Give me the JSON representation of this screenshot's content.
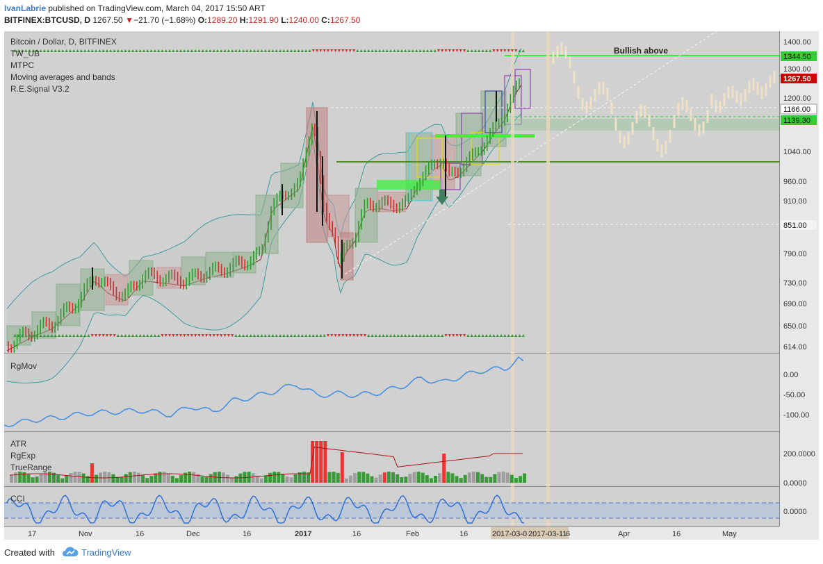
{
  "header": {
    "user": "IvanLabrie",
    "published_text": " published on TradingView.com, March 04, 2017 15:50 ART",
    "symbol": "BITFINEX:BTCUSD, D",
    "last": "1267.50",
    "change_arrow": "▼",
    "change": "−21.70 (−1.68%)",
    "o_label": "O:",
    "o_value": "1289.20",
    "h_label": "H:",
    "h_value": "1291.90",
    "l_label": "L:",
    "l_value": "1240.00",
    "c_label": "C:",
    "c_value": "1267.50"
  },
  "main_pane": {
    "title": "Bitcoin / Dollar, D, BITFINEX",
    "indicators": [
      "TW_UB",
      "MTPC",
      "Moving averages and bands",
      "R.E.Signal V3.2"
    ],
    "annotation": "Bullish above",
    "price_ticks": [
      "1400.00",
      "1300.00",
      "1200.00",
      "1040.00",
      "960.00",
      "910.00",
      "851.00",
      "790.00",
      "730.00",
      "690.00",
      "650.00",
      "614.00"
    ],
    "price_tags": [
      {
        "label": "1344.50",
        "color": "#33cc33"
      },
      {
        "label": "1267.50",
        "color": "#cc0000"
      },
      {
        "label": "1166.00",
        "color": "#ffffff"
      },
      {
        "label": "1139.30",
        "color": "#33cc33"
      },
      {
        "label": "851.00",
        "color": "#f3f3f3"
      }
    ]
  },
  "rgmov_pane": {
    "title": "RgMov",
    "ticks": [
      "0.00",
      "-50.00",
      "-100.00"
    ]
  },
  "atr_pane": {
    "titles": [
      "ATR",
      "RgExp",
      "TrueRange"
    ],
    "ticks": [
      "200.0000",
      "0.0000"
    ]
  },
  "cci_pane": {
    "title": "CCI",
    "ticks": [
      "0.0000"
    ]
  },
  "time_axis": {
    "labels": [
      "17",
      "Nov",
      "16",
      "Dec",
      "16",
      "2017",
      "16",
      "Feb",
      "16",
      "Apr",
      "16",
      "May"
    ],
    "date_tags": [
      "2017-03-0",
      "2017-03-11"
    ],
    "date_tag_tail": "6"
  },
  "footer": {
    "created": "Created with",
    "brand": "TradingView"
  },
  "colors": {
    "bg_panel": "#d1d1d1",
    "up": "#2e9c2e",
    "down": "#d32f2f",
    "rgmov_line": "#4a90e2",
    "cci_line": "#2f6fd6",
    "cci_band": "#b7c4da",
    "atr_line": "#a31515",
    "bullish_line": "#33ee33",
    "support_line": "#4f8a2b"
  },
  "chart_data": [
    {
      "type": "line",
      "title": "Bitcoin / Dollar, D, BITFINEX",
      "x_type": "date",
      "x": [
        "2016-10-07",
        "2016-10-17",
        "2016-11-01",
        "2016-11-16",
        "2016-12-01",
        "2016-12-16",
        "2017-01-01",
        "2017-01-05",
        "2017-01-11",
        "2017-01-16",
        "2017-02-01",
        "2017-02-16",
        "2017-03-01",
        "2017-03-04"
      ],
      "series": [
        {
          "values": [
            614,
            640,
            700,
            740,
            755,
            790,
            960,
            1140,
            800,
            870,
            960,
            1020,
            1190,
            1267.5
          ]
        }
      ],
      "ylim": [
        600,
        1420
      ],
      "annotations": [
        {
          "text": "Bullish above",
          "y": 1344.5
        },
        {
          "y": 1166.0
        },
        {
          "y": 1139.3
        },
        {
          "y": 851.0
        }
      ],
      "grid": false
    },
    {
      "type": "line",
      "title": "RgMov",
      "series": [
        {
          "values": [
            -120,
            -110,
            -105,
            -85,
            -90,
            -60,
            -40,
            -10,
            -30,
            -50,
            -25,
            -5,
            10,
            30
          ]
        }
      ],
      "ylim": [
        -130,
        40
      ]
    },
    {
      "type": "bar",
      "title": "TrueRange",
      "series": [
        {
          "name": "ATR",
          "values": [
            20,
            30,
            25,
            40,
            35,
            60,
            120,
            90,
            60,
            55,
            70,
            65,
            80
          ]
        }
      ],
      "ylim": [
        0,
        300
      ]
    },
    {
      "type": "line",
      "title": "CCI",
      "series": [
        {
          "values": [
            100,
            -100,
            150,
            -50,
            120,
            -80,
            140,
            -150,
            -60,
            90,
            200,
            -80,
            50,
            120,
            30
          ]
        }
      ]
    }
  ]
}
